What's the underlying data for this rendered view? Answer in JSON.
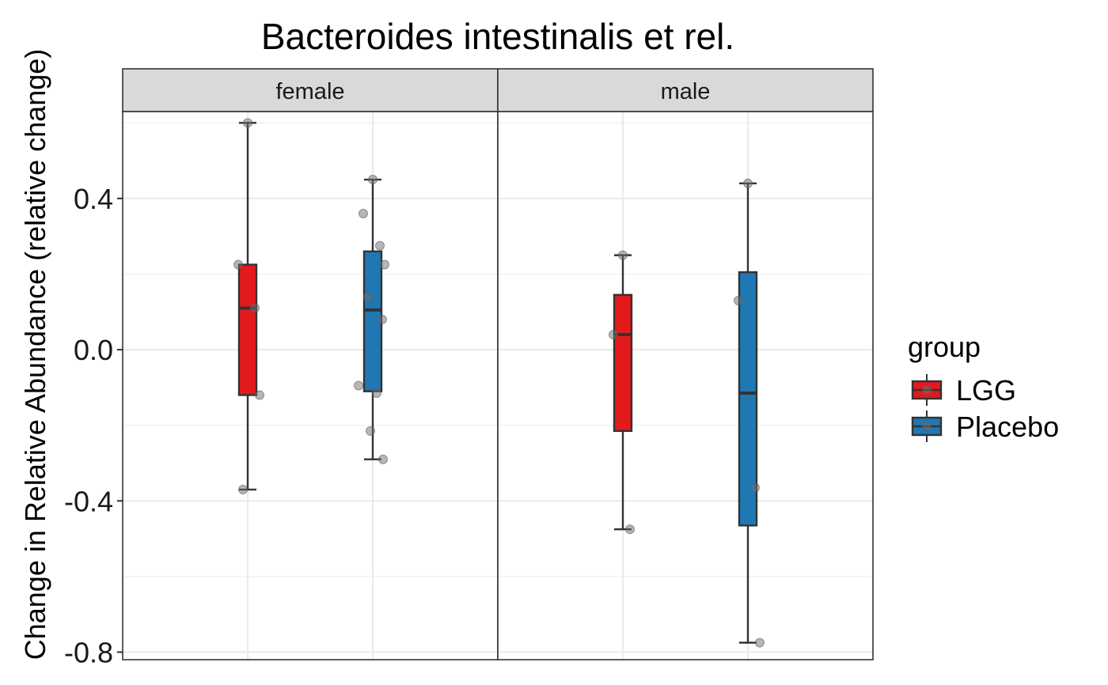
{
  "chart_data": {
    "type": "box",
    "title": "Bacteroides intestinalis et rel.",
    "ylabel": "Change in Relative Abundance (relative change)",
    "xlabel": "",
    "ylim": [
      -0.82,
      0.63
    ],
    "y_ticks": [
      0.4,
      0.0,
      -0.4,
      -0.8
    ],
    "y_tick_labels": [
      "0.4",
      "0.0",
      "-0.4",
      "-0.8"
    ],
    "grid": true,
    "legend": {
      "title": "group",
      "position": "right",
      "entries": [
        {
          "label": "LGG",
          "color": "#E31A1C"
        },
        {
          "label": "Placebo",
          "color": "#1F78B4"
        }
      ]
    },
    "facets": [
      {
        "label": "female",
        "boxes": [
          {
            "group": "LGG",
            "whisker_low": -0.37,
            "q1": -0.12,
            "median": 0.11,
            "q3": 0.225,
            "whisker_high": 0.6,
            "points": [
              0.6,
              0.225,
              0.11,
              -0.12,
              -0.37
            ]
          },
          {
            "group": "Placebo",
            "whisker_low": -0.29,
            "q1": -0.11,
            "median": 0.105,
            "q3": 0.26,
            "whisker_high": 0.45,
            "points": [
              0.45,
              0.36,
              0.275,
              0.225,
              0.14,
              0.08,
              -0.095,
              -0.115,
              -0.215,
              -0.29
            ]
          }
        ]
      },
      {
        "label": "male",
        "boxes": [
          {
            "group": "LGG",
            "whisker_low": -0.475,
            "q1": -0.215,
            "median": 0.04,
            "q3": 0.145,
            "whisker_high": 0.25,
            "points": [
              0.25,
              0.04,
              -0.475
            ]
          },
          {
            "group": "Placebo",
            "whisker_low": -0.775,
            "q1": -0.465,
            "median": -0.115,
            "q3": 0.205,
            "whisker_high": 0.44,
            "points": [
              0.44,
              0.13,
              -0.365,
              -0.775
            ]
          }
        ]
      }
    ]
  }
}
